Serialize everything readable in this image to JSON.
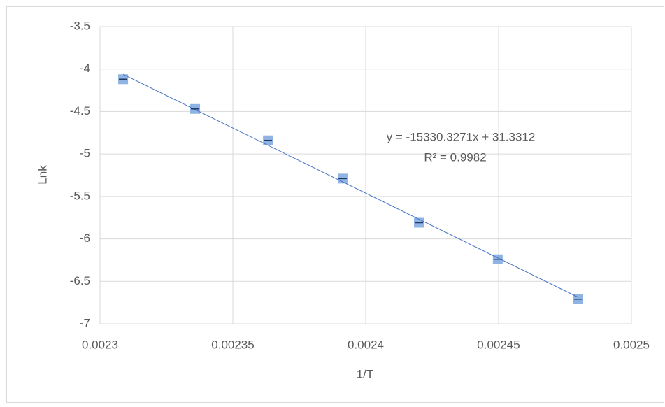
{
  "chart_data": {
    "type": "scatter",
    "x_label": "1/T",
    "y_label": "Lnk",
    "series": [
      {
        "color": "#8fb4e3",
        "x": [
          0.0023087,
          0.0023358,
          0.0023632,
          0.0023913,
          0.00242,
          0.0024497,
          0.00248
        ],
        "values": [
          -4.12,
          -4.47,
          -4.84,
          -5.29,
          -5.81,
          -6.24,
          -6.71
        ]
      }
    ],
    "trendline": {
      "slope": -15330.3271,
      "intercept": 31.3312,
      "color": "#4472c4",
      "equation": "y = -15330.3271x + 31.3312",
      "r2_label": "R² = 0.9982"
    },
    "xlim": [
      0.0023,
      0.0025
    ],
    "xticks": [
      0.0023,
      0.00235,
      0.0024,
      0.00245,
      0.0025
    ],
    "ylim": [
      -7,
      -3.5
    ],
    "yticks": [
      -3.5,
      -4,
      -4.5,
      -5,
      -5.5,
      -6,
      -6.5,
      -7
    ],
    "grid": true
  }
}
